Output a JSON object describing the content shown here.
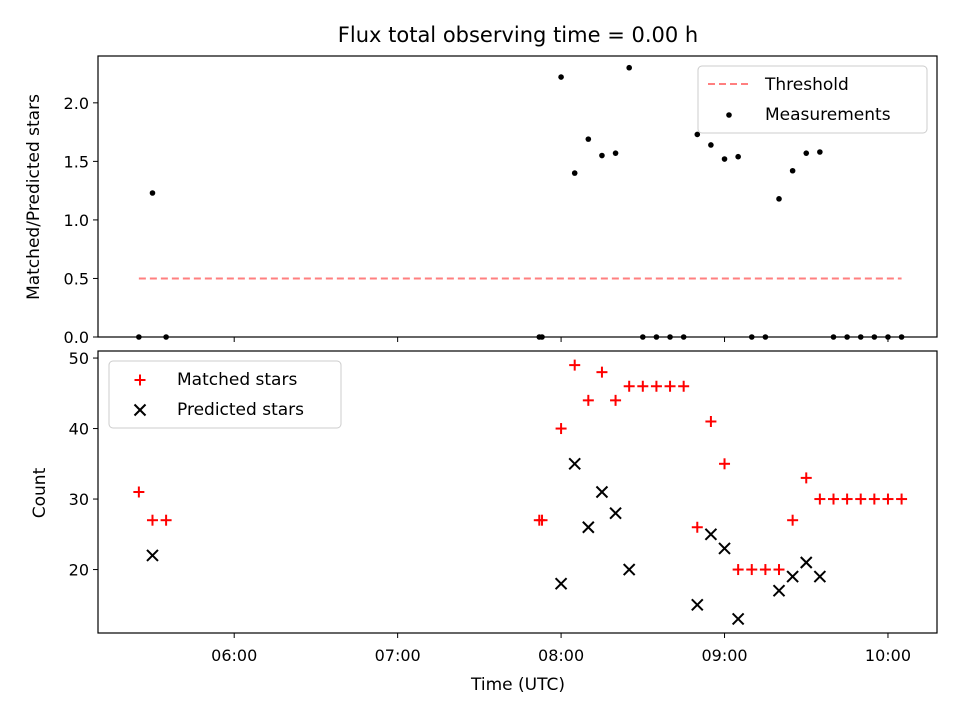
{
  "chart_data": [
    {
      "type": "scatter",
      "title": "Flux total observing time = 0.00 h",
      "xlabel": "",
      "ylabel": "Matched/Predicted stars",
      "xlim": [
        "05:10",
        "10:18"
      ],
      "ylim": [
        0,
        2.4
      ],
      "yticks": [
        0.0,
        0.5,
        1.0,
        1.5,
        2.0
      ],
      "ytick_labels": [
        "0.0",
        "0.5",
        "1.0",
        "1.5",
        "2.0"
      ],
      "grid": false,
      "legend": "top-right",
      "legend_entries": [
        "Threshold",
        "Measurements"
      ],
      "threshold": {
        "name": "Threshold",
        "value": 0.5,
        "x": [
          "05:25",
          "10:05"
        ],
        "color": "#ff7f7f"
      },
      "series": [
        {
          "name": "Measurements",
          "color": "#000000",
          "x": [
            "05:25",
            "05:30",
            "05:35",
            "07:52",
            "07:53",
            "08:00",
            "08:05",
            "08:10",
            "08:15",
            "08:20",
            "08:25",
            "08:30",
            "08:35",
            "08:40",
            "08:45",
            "08:50",
            "08:55",
            "09:00",
            "09:05",
            "09:10",
            "09:15",
            "09:20",
            "09:25",
            "09:30",
            "09:35",
            "09:40",
            "09:45",
            "09:50",
            "09:55",
            "10:00",
            "10:05"
          ],
          "y": [
            0.0,
            1.23,
            0.0,
            0.0,
            0.0,
            2.22,
            1.4,
            1.69,
            1.55,
            1.57,
            2.3,
            0.0,
            0.0,
            0.0,
            0.0,
            1.73,
            1.64,
            1.52,
            1.54,
            0.0,
            0.0,
            1.18,
            1.42,
            1.57,
            1.58,
            0.0,
            0.0,
            0.0,
            0.0,
            0.0,
            0.0
          ]
        }
      ]
    },
    {
      "type": "scatter",
      "title": "",
      "xlabel": "Time (UTC)",
      "ylabel": "Count",
      "xlim": [
        "05:10",
        "10:18"
      ],
      "ylim": [
        11,
        51
      ],
      "yticks": [
        20,
        30,
        40,
        50
      ],
      "ytick_labels": [
        "20",
        "30",
        "40",
        "50"
      ],
      "xticks": [
        "06:00",
        "07:00",
        "08:00",
        "09:00",
        "10:00"
      ],
      "xtick_labels": [
        "06:00",
        "07:00",
        "08:00",
        "09:00",
        "10:00"
      ],
      "grid": false,
      "legend": "top-left",
      "legend_entries": [
        "Matched stars",
        "Predicted stars"
      ],
      "series": [
        {
          "name": "Matched stars",
          "marker": "plus",
          "color": "#ff0000",
          "x": [
            "05:25",
            "05:30",
            "05:35",
            "07:52",
            "07:53",
            "08:00",
            "08:05",
            "08:10",
            "08:15",
            "08:20",
            "08:25",
            "08:30",
            "08:35",
            "08:40",
            "08:45",
            "08:50",
            "08:55",
            "09:00",
            "09:05",
            "09:10",
            "09:15",
            "09:20",
            "09:25",
            "09:30",
            "09:35",
            "09:40",
            "09:45",
            "09:50",
            "09:55",
            "10:00",
            "10:05"
          ],
          "y": [
            31,
            27,
            27,
            27,
            27,
            40,
            49,
            44,
            48,
            44,
            46,
            46,
            46,
            46,
            46,
            26,
            41,
            35,
            20,
            20,
            20,
            20,
            27,
            33,
            30,
            30,
            30,
            30,
            30,
            30,
            30
          ]
        },
        {
          "name": "Predicted stars",
          "marker": "x",
          "color": "#000000",
          "x": [
            "05:30",
            "08:00",
            "08:05",
            "08:10",
            "08:15",
            "08:20",
            "08:25",
            "08:50",
            "08:55",
            "09:00",
            "09:05",
            "09:20",
            "09:25",
            "09:30",
            "09:35"
          ],
          "y": [
            22,
            18,
            35,
            26,
            31,
            28,
            20,
            15,
            25,
            23,
            13,
            17,
            19,
            21,
            19
          ]
        }
      ]
    }
  ]
}
